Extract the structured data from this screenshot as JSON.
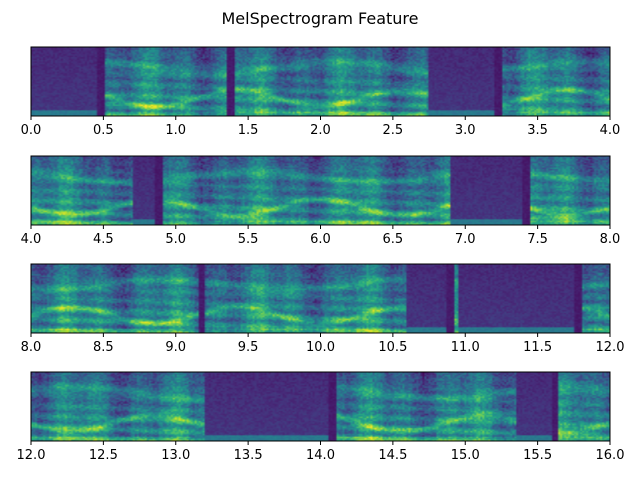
{
  "chart_data": {
    "type": "heatmap",
    "title": "MelSpectrogram Feature",
    "xlabel": "",
    "ylabel": "",
    "colormap": "viridis",
    "colors": [
      "#440154",
      "#3b528b",
      "#21918c",
      "#5ec962",
      "#fde725"
    ],
    "y_ticks_visible": false,
    "grid": false,
    "panels": [
      {
        "xlim": [
          0.0,
          4.0
        ],
        "xticks": [
          "0.0",
          "0.5",
          "1.0",
          "1.5",
          "2.0",
          "2.5",
          "3.0",
          "3.5",
          "4.0"
        ]
      },
      {
        "xlim": [
          4.0,
          8.0
        ],
        "xticks": [
          "4.0",
          "4.5",
          "5.0",
          "5.5",
          "6.0",
          "6.5",
          "7.0",
          "7.5",
          "8.0"
        ]
      },
      {
        "xlim": [
          8.0,
          12.0
        ],
        "xticks": [
          "8.0",
          "8.5",
          "9.0",
          "9.5",
          "10.0",
          "10.5",
          "11.0",
          "11.5",
          "12.0"
        ]
      },
      {
        "xlim": [
          12.0,
          16.0
        ],
        "xticks": [
          "12.0",
          "12.5",
          "13.0",
          "13.5",
          "14.0",
          "14.5",
          "15.0",
          "15.5",
          "16.0"
        ]
      }
    ],
    "quiet_segments": [
      [
        0.0,
        0.48
      ],
      [
        2.75,
        3.23
      ],
      [
        4.7,
        4.88
      ],
      [
        6.9,
        7.42
      ],
      [
        10.6,
        10.9
      ],
      [
        10.95,
        11.78
      ],
      [
        13.2,
        14.08
      ],
      [
        15.35,
        15.62
      ]
    ],
    "segment_boundaries": [
      0.48,
      1.38,
      3.23,
      4.88,
      7.42,
      9.18,
      10.9,
      11.78,
      14.08,
      15.62
    ]
  }
}
